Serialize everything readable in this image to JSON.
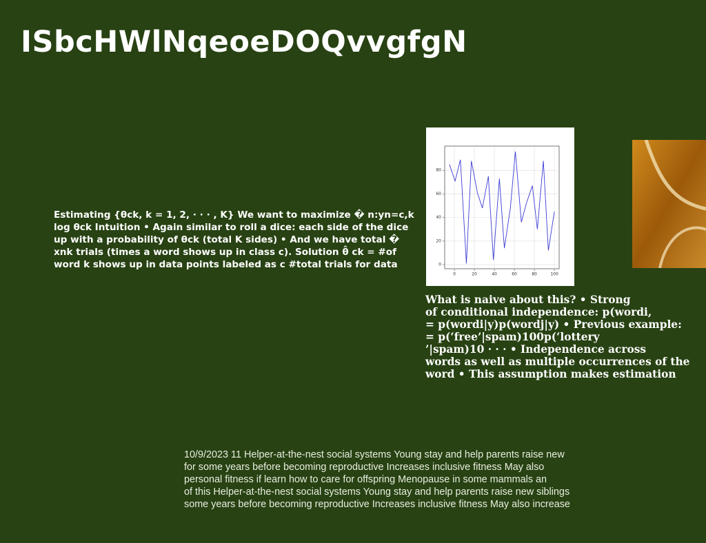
{
  "title": "ISbcHWlNqeoeDOQvvgfgN",
  "left_text": [
    "Estimating {θck, k = 1, 2, · · · , K} We want to maximize � n:yn=c,k",
    "log θck Intuition • Again similar to roll a dice: each side of the dice",
    "up with a probability of θck (total K sides) • And we have total �",
    "xnk trials (times a word shows up in class c). Solution θ̂ ck = #of",
    "word k shows up in data points labeled as c #total trials for data"
  ],
  "right_text": [
    "What is naive about this? • Strong",
    "of conditional independence: p(wordi,",
    "= p(wordi|y)p(wordj|y) • Previous example:",
    "= p(‘free’|spam)100p(‘lottery",
    "’|spam)10 · · · • Independence across",
    "words as well as multiple occurrences of the",
    "word • This assumption makes estimation"
  ],
  "bottom_text": [
    "10/9/2023 11 Helper-at-the-nest social systems Young stay and help parents raise new",
    "for some years before becoming reproductive Increases inclusive fitness May also",
    "personal fitness if learn how to care for offspring Menopause in some mammals an",
    "of this Helper-at-the-nest social systems Young stay and help parents raise new siblings",
    "some years before becoming reproductive Increases inclusive fitness May also increase"
  ],
  "chart_data": {
    "type": "line",
    "color": "#3b3bd6",
    "x": [
      -5,
      0.7,
      6,
      12,
      17,
      23,
      28,
      34,
      39,
      45,
      50,
      56,
      61,
      67,
      72,
      78,
      83,
      89,
      94,
      100
    ],
    "values": [
      85,
      71,
      89,
      1,
      88,
      61,
      48,
      75,
      4,
      73,
      14,
      48,
      96,
      36,
      52,
      67,
      30,
      88,
      12,
      45
    ],
    "xlim": [
      -9.7,
      104.8
    ],
    "ylim": [
      -3.5,
      100.6
    ],
    "xticks": [
      0,
      20,
      40,
      60,
      80,
      100
    ],
    "yticks": [
      0,
      20,
      40,
      60,
      80
    ],
    "grid": true
  }
}
